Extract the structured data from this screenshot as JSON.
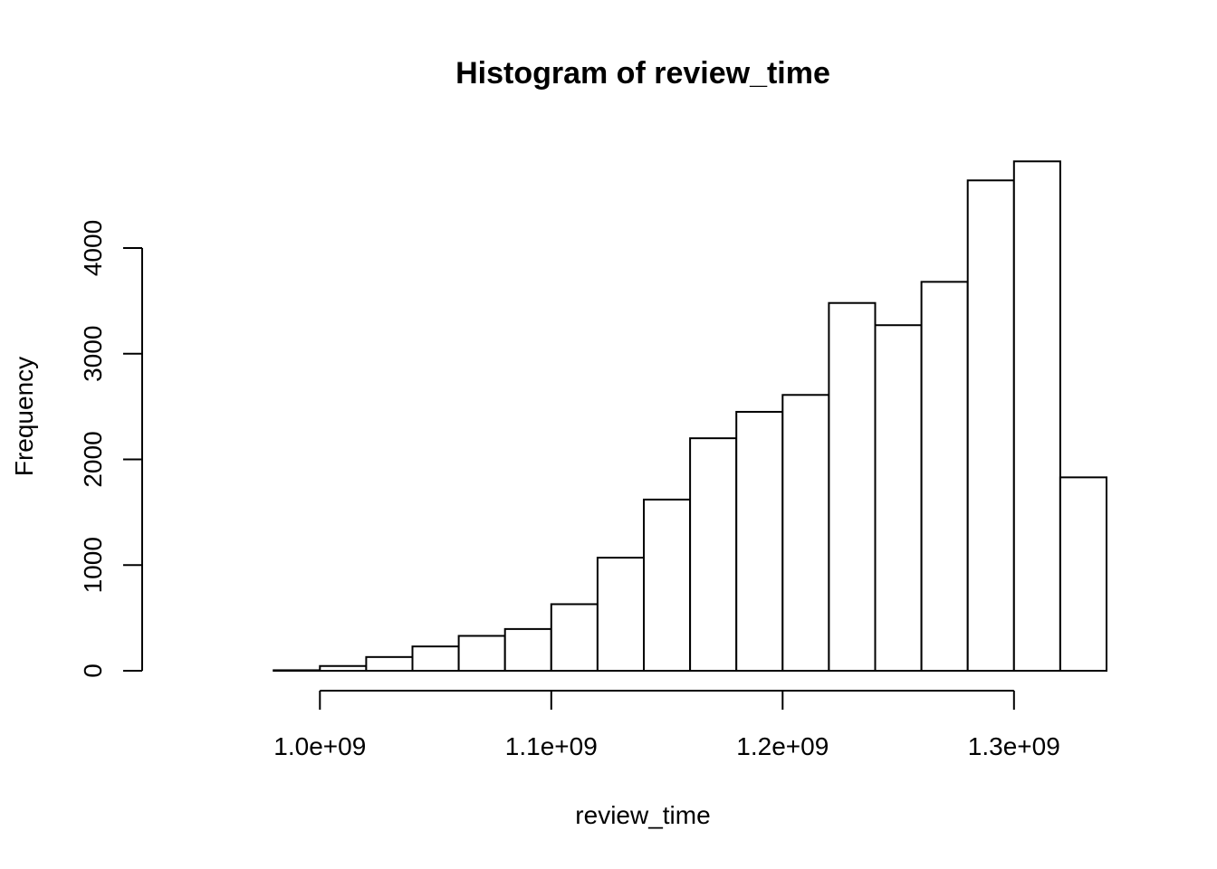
{
  "chart_data": {
    "type": "bar",
    "title": "Histogram of review_time",
    "xlabel": "review_time",
    "ylabel": "Frequency",
    "xlim": [
      940000000,
      1340000000
    ],
    "ylim": [
      0,
      4800
    ],
    "grid": false,
    "legend": "none",
    "bar_fill": "#ffffff",
    "bar_stroke": "#000000",
    "x_ticks": [
      1000000000,
      1100000000,
      1200000000,
      1300000000
    ],
    "x_tick_labels": [
      "1.0e+09",
      "1.1e+09",
      "1.2e+09",
      "1.3e+09"
    ],
    "y_ticks": [
      0,
      1000,
      2000,
      3000,
      4000
    ],
    "y_tick_labels": [
      "0",
      "1000",
      "2000",
      "3000",
      "4000"
    ],
    "bins": [
      {
        "start": 960000000,
        "end": 980000000,
        "count": 0
      },
      {
        "start": 980000000,
        "end": 1000000000,
        "count": 5
      },
      {
        "start": 1000000000,
        "end": 1020000000,
        "count": 45
      },
      {
        "start": 1020000000,
        "end": 1040000000,
        "count": 130
      },
      {
        "start": 1040000000,
        "end": 1060000000,
        "count": 230
      },
      {
        "start": 1060000000,
        "end": 1080000000,
        "count": 330
      },
      {
        "start": 1080000000,
        "end": 1100000000,
        "count": 395
      },
      {
        "start": 1100000000,
        "end": 1120000000,
        "count": 630
      },
      {
        "start": 1120000000,
        "end": 1140000000,
        "count": 1070
      },
      {
        "start": 1140000000,
        "end": 1160000000,
        "count": 1620
      },
      {
        "start": 1160000000,
        "end": 1180000000,
        "count": 2200
      },
      {
        "start": 1180000000,
        "end": 1200000000,
        "count": 2450
      },
      {
        "start": 1200000000,
        "end": 1220000000,
        "count": 2610
      },
      {
        "start": 1220000000,
        "end": 1240000000,
        "count": 3480
      },
      {
        "start": 1240000000,
        "end": 1260000000,
        "count": 3270
      },
      {
        "start": 1260000000,
        "end": 1280000000,
        "count": 3680
      },
      {
        "start": 1280000000,
        "end": 1300000000,
        "count": 4640
      },
      {
        "start": 1300000000,
        "end": 1320000000,
        "count": 4820
      },
      {
        "start": 1320000000,
        "end": 1340000000,
        "count": 1830
      }
    ]
  }
}
